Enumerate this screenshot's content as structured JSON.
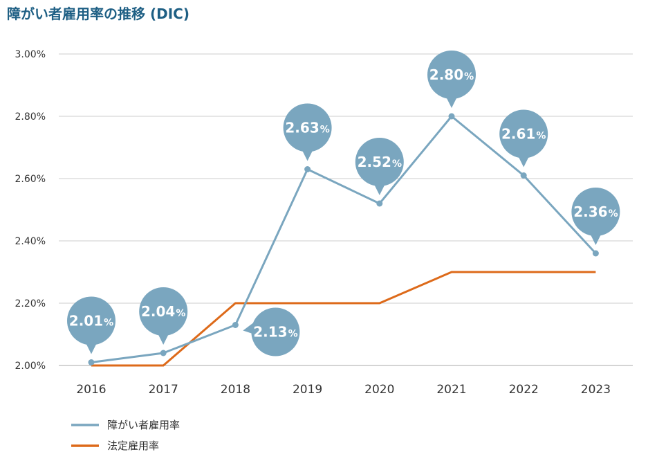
{
  "chart_data": {
    "type": "line",
    "title": "障がい者雇用率の推移 (DIC)",
    "x": [
      "2016",
      "2017",
      "2018",
      "2019",
      "2020",
      "2021",
      "2022",
      "2023"
    ],
    "ylim": [
      2.0,
      3.0
    ],
    "yticks": [
      "2.00%",
      "2.20%",
      "2.40%",
      "2.60%",
      "2.80%",
      "3.00%"
    ],
    "grid": true,
    "legend_position": "bottom-left",
    "series": [
      {
        "name": "障がい者雇用率",
        "color": "#7aa6bf",
        "values": [
          2.01,
          2.04,
          2.13,
          2.63,
          2.52,
          2.8,
          2.61,
          2.36
        ],
        "labels": [
          "2.01",
          "2.04",
          "2.13",
          "2.63",
          "2.52",
          "2.80",
          "2.61",
          "2.36"
        ],
        "label_unit": "%"
      },
      {
        "name": "法定雇用率",
        "color": "#dd6a1a",
        "values": [
          2.0,
          2.0,
          2.2,
          2.2,
          2.2,
          2.3,
          2.3,
          2.3
        ],
        "step": true
      }
    ]
  }
}
